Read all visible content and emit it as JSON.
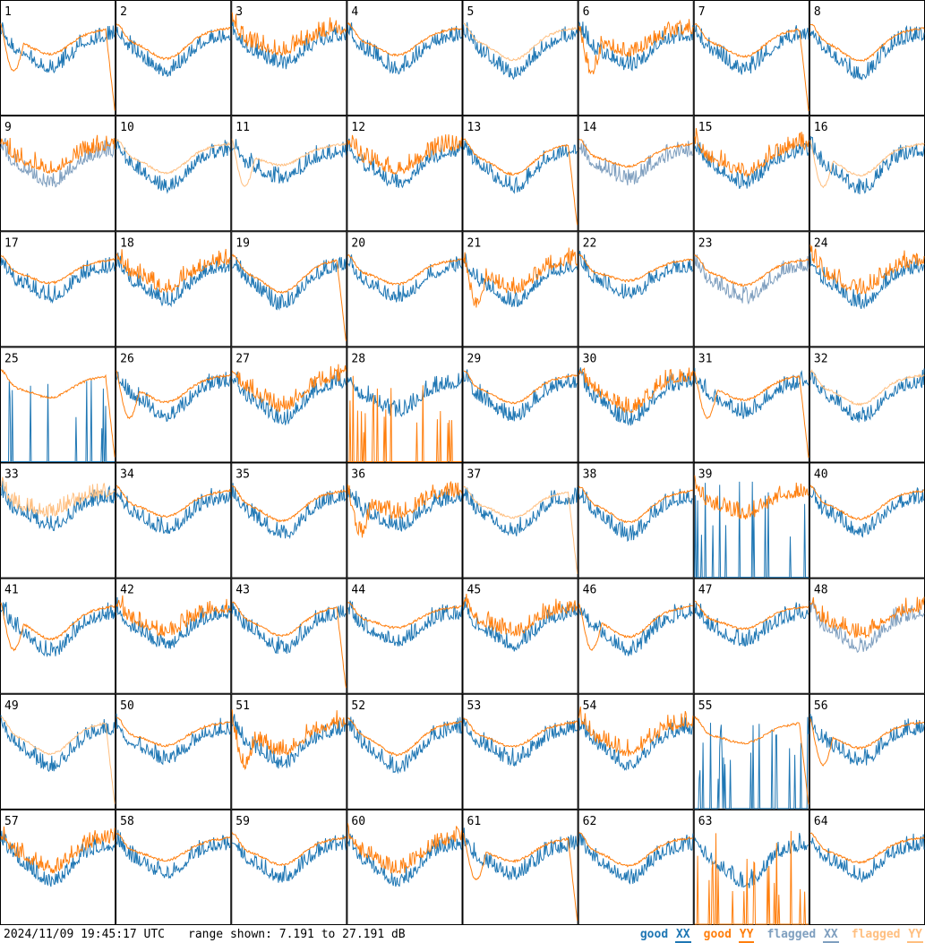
{
  "chart_data": {
    "type": "line",
    "title": "",
    "grid_rows": 8,
    "grid_cols": 8,
    "panel_labels": [
      "1",
      "2",
      "3",
      "4",
      "5",
      "6",
      "7",
      "8",
      "9",
      "10",
      "11",
      "12",
      "13",
      "14",
      "15",
      "16",
      "17",
      "18",
      "19",
      "20",
      "21",
      "22",
      "23",
      "24",
      "25",
      "26",
      "27",
      "28",
      "29",
      "30",
      "31",
      "32",
      "33",
      "34",
      "35",
      "36",
      "37",
      "38",
      "39",
      "40",
      "41",
      "42",
      "43",
      "44",
      "45",
      "46",
      "47",
      "48",
      "49",
      "50",
      "51",
      "52",
      "53",
      "54",
      "55",
      "56",
      "57",
      "58",
      "59",
      "60",
      "61",
      "62",
      "63",
      "64"
    ],
    "ylim": [
      7.191,
      27.191
    ],
    "yunit": "dB",
    "legend": {
      "placement": "bottom-right",
      "entries": [
        {
          "name": "good XX",
          "color": "#1f77b4"
        },
        {
          "name": "good YY",
          "color": "#ff7f0e"
        },
        {
          "name": "flagged XX",
          "color": "#7f9fbf"
        },
        {
          "name": "flagged YY",
          "color": "#ffbf80"
        }
      ]
    },
    "flagged_xx_panels": [
      9,
      14,
      23,
      48
    ],
    "flagged_yy_panels": [
      5,
      10,
      11,
      16,
      32,
      33,
      37,
      49
    ]
  },
  "footer": {
    "timestamp": "2024/11/09 19:45:17 UTC",
    "range_text": "range shown: 7.191 to 27.191 dB",
    "legend_good": "good",
    "legend_flagged": "flagged",
    "legend_xx": "XX",
    "legend_yy": "YY"
  }
}
